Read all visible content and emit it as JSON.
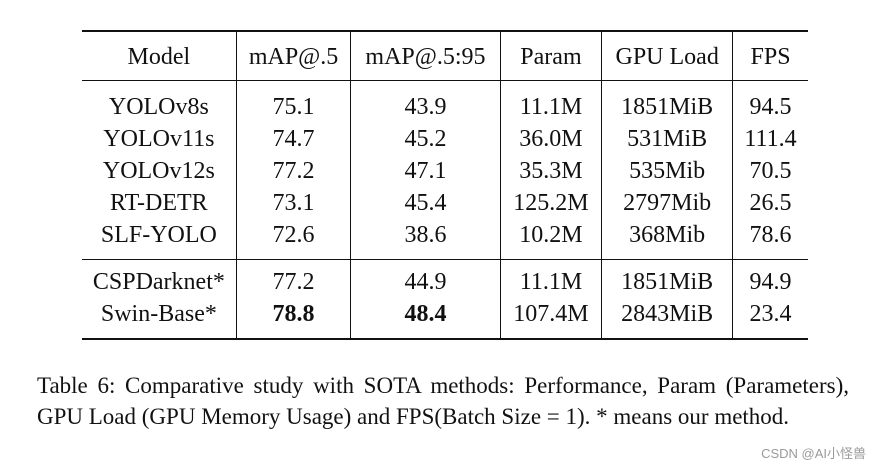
{
  "table": {
    "headers": [
      "Model",
      "mAP@.5",
      "mAP@.5:95",
      "Param",
      "GPU Load",
      "FPS"
    ],
    "group1": [
      [
        "YOLOv8s",
        "75.1",
        "43.9",
        "11.1M",
        "1851MiB",
        "94.5"
      ],
      [
        "YOLOv11s",
        "74.7",
        "45.2",
        "36.0M",
        "531MiB",
        "111.4"
      ],
      [
        "YOLOv12s",
        "77.2",
        "47.1",
        "35.3M",
        "535Mib",
        "70.5"
      ],
      [
        "RT-DETR",
        "73.1",
        "45.4",
        "125.2M",
        "2797Mib",
        "26.5"
      ],
      [
        "SLF-YOLO",
        "72.6",
        "38.6",
        "10.2M",
        "368Mib",
        "78.6"
      ]
    ],
    "group2": [
      [
        "CSPDarknet*",
        "77.2",
        "44.9",
        "11.1M",
        "1851MiB",
        "94.9"
      ],
      [
        "Swin-Base*",
        "78.8",
        "48.4",
        "107.4M",
        "2843MiB",
        "23.4"
      ]
    ]
  },
  "caption": "Table 6: Comparative study with SOTA methods: Performance, Param (Parameters), GPU Load (GPU Memory Usage) and FPS(Batch Size = 1).  * means our method.",
  "watermark": "CSDN @AI小怪兽"
}
